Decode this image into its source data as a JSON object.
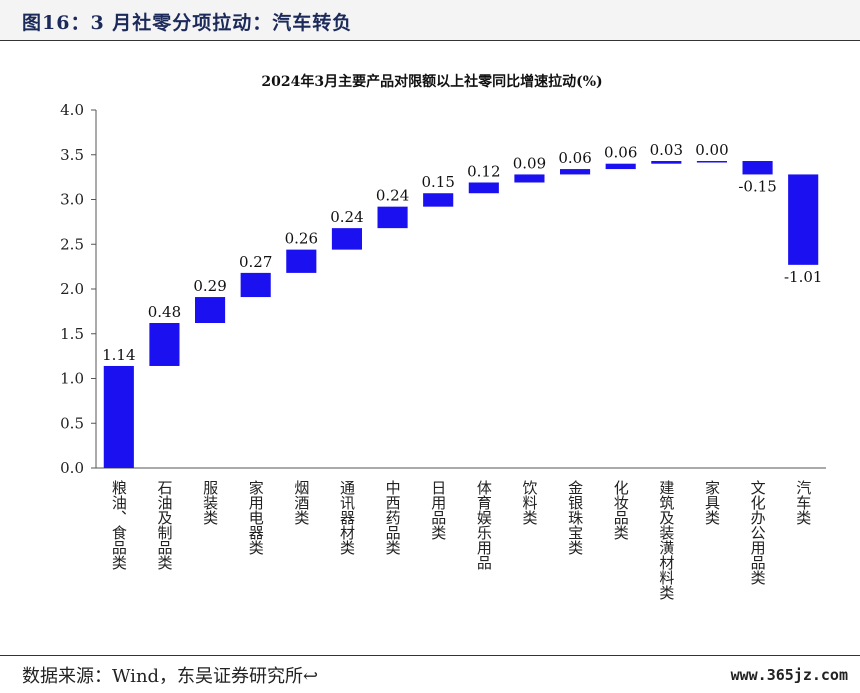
{
  "figure": {
    "title": "图16：3 月社零分项拉动：汽车转负",
    "source": "数据来源：Wind，东吴证券研究所↩",
    "watermark": "www.365jz.com"
  },
  "chart_data": {
    "type": "bar",
    "subtype": "waterfall",
    "title": "2024年3月主要产品对限额以上社零同比增速拉动(%)",
    "xlabel": "",
    "ylabel": "",
    "ylim": [
      0,
      4.0
    ],
    "yticks": [
      "0.0",
      "0.5",
      "1.0",
      "1.5",
      "2.0",
      "2.5",
      "3.0",
      "3.5",
      "4.0"
    ],
    "grid": false,
    "bar_color": "#1a10f0",
    "categories": [
      "粮油、食品类",
      "石油及制品类",
      "服装类",
      "家用电器类",
      "烟酒类",
      "通讯器材类",
      "中西药品类",
      "日用品类",
      "体育娱乐用品",
      "饮料类",
      "金银珠宝类",
      "化妆品类",
      "建筑及装潢材料类",
      "家具类",
      "文化办公用品类",
      "汽车类"
    ],
    "values": [
      1.14,
      0.48,
      0.29,
      0.27,
      0.26,
      0.24,
      0.24,
      0.15,
      0.12,
      0.09,
      0.06,
      0.06,
      0.03,
      0.0,
      -0.15,
      -1.01
    ],
    "value_labels": [
      "1.14",
      "0.48",
      "0.29",
      "0.27",
      "0.26",
      "0.24",
      "0.24",
      "0.15",
      "0.12",
      "0.09",
      "0.06",
      "0.06",
      "0.03",
      "0.00",
      "-0.15",
      "-1.01"
    ]
  }
}
